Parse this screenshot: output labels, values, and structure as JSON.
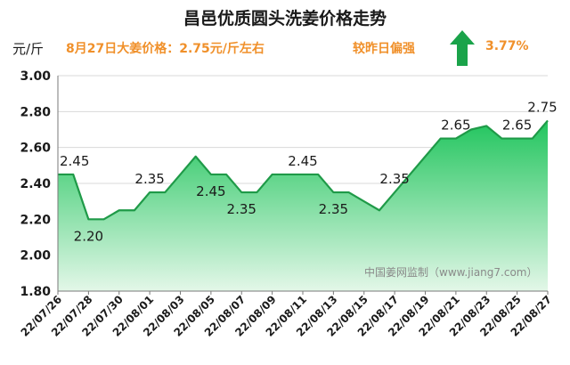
{
  "header": {
    "title": "昌邑优质圆头洗姜价格走势",
    "unit": "元/斤",
    "price_note": "8月27日大姜价格：2.75元/斤左右",
    "compare_label": "较昨日偏强",
    "change_value": "3.77%"
  },
  "icons": {
    "trend": "up-arrow-icon"
  },
  "colors": {
    "line": "#1f9a48",
    "fill_top": "#22c55e",
    "fill_bottom": "#dcf5e2",
    "accent": "#f0902a",
    "arrow": "#1aa34a"
  },
  "watermark": "中国姜网监制（www.jiang7.com）",
  "chart_data": {
    "type": "area",
    "title": "昌邑优质圆头洗姜价格走势",
    "ylabel": "元/斤",
    "ylim": [
      1.8,
      3.0
    ],
    "y_ticks": [
      "1.80",
      "2.00",
      "2.20",
      "2.40",
      "2.60",
      "2.80",
      "3.00"
    ],
    "x_ticks": [
      "22/07/26",
      "22/07/28",
      "22/07/30",
      "22/08/01",
      "22/08/03",
      "22/08/05",
      "22/08/07",
      "22/08/09",
      "22/08/11",
      "22/08/13",
      "22/08/15",
      "22/08/17",
      "22/08/19",
      "22/08/21",
      "22/08/23",
      "22/08/25",
      "22/08/27"
    ],
    "x": [
      "22/07/26",
      "22/07/27",
      "22/07/28",
      "22/07/29",
      "22/07/30",
      "22/07/31",
      "22/08/01",
      "22/08/02",
      "22/08/03",
      "22/08/04",
      "22/08/05",
      "22/08/06",
      "22/08/07",
      "22/08/08",
      "22/08/09",
      "22/08/10",
      "22/08/11",
      "22/08/12",
      "22/08/13",
      "22/08/14",
      "22/08/15",
      "22/08/16",
      "22/08/17",
      "22/08/18",
      "22/08/19",
      "22/08/20",
      "22/08/21",
      "22/08/22",
      "22/08/23",
      "22/08/24",
      "22/08/25",
      "22/08/26",
      "22/08/27"
    ],
    "values": [
      2.45,
      2.45,
      2.2,
      2.2,
      2.25,
      2.25,
      2.35,
      2.35,
      2.45,
      2.55,
      2.45,
      2.45,
      2.35,
      2.35,
      2.45,
      2.45,
      2.45,
      2.45,
      2.35,
      2.35,
      2.3,
      2.25,
      2.35,
      2.45,
      2.55,
      2.65,
      2.65,
      2.7,
      2.72,
      2.65,
      2.65,
      2.65,
      2.75
    ],
    "data_labels": [
      {
        "date": "22/07/26",
        "text": "2.45"
      },
      {
        "date": "22/07/28",
        "text": "2.20"
      },
      {
        "date": "22/08/01",
        "text": "2.35"
      },
      {
        "date": "22/08/05",
        "text": "2.45"
      },
      {
        "date": "22/08/07",
        "text": "2.35"
      },
      {
        "date": "22/08/11",
        "text": "2.45"
      },
      {
        "date": "22/08/13",
        "text": "2.35"
      },
      {
        "date": "22/08/17",
        "text": "2.35"
      },
      {
        "date": "22/08/21",
        "text": "2.65"
      },
      {
        "date": "22/08/25",
        "text": "2.65"
      },
      {
        "date": "22/08/27",
        "text": "2.75"
      }
    ],
    "grid": true,
    "legend": "none"
  }
}
